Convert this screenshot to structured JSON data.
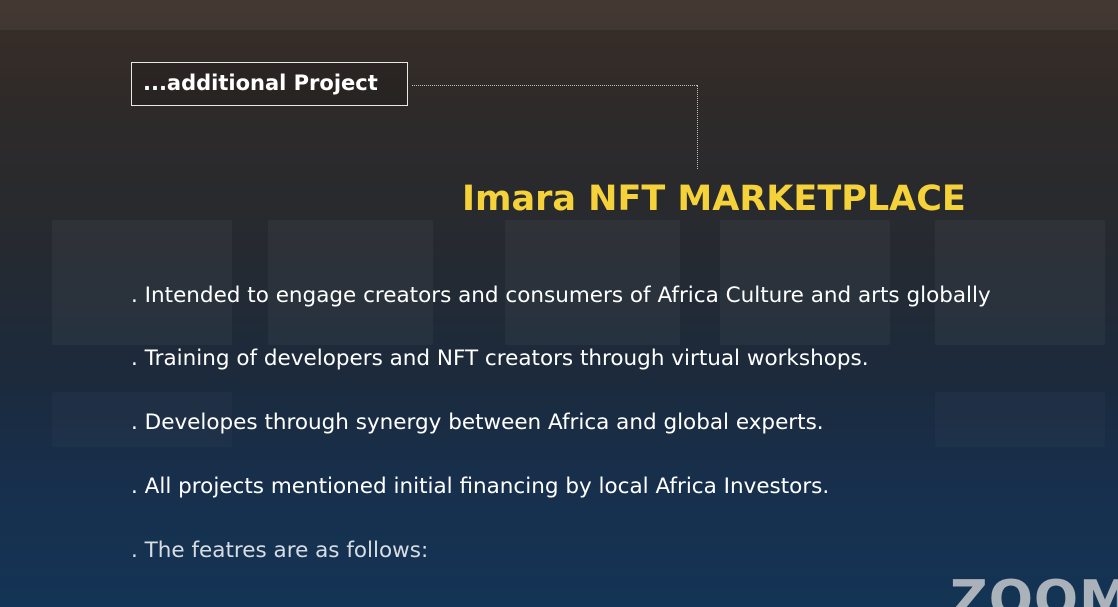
{
  "slide": {
    "tag_label": "...additional Project",
    "title": "Imara NFT MARKETPLACE",
    "bullets": [
      ". Intended to engage creators and consumers of Africa Culture and arts globally",
      ". Training of developers and NFT creators through virtual workshops.",
      ". Developes through synergy between Africa and global experts.",
      ". All projects mentioned initial financing by local Africa Investors.",
      ". The featres are as follows:"
    ]
  },
  "watermark": {
    "text": "ZOOM",
    "icon": "zoom-logo"
  },
  "colors": {
    "title": "#f5d23a",
    "text": "#ffffff",
    "background_top": "#3a2e27",
    "background_bottom": "#143455"
  }
}
